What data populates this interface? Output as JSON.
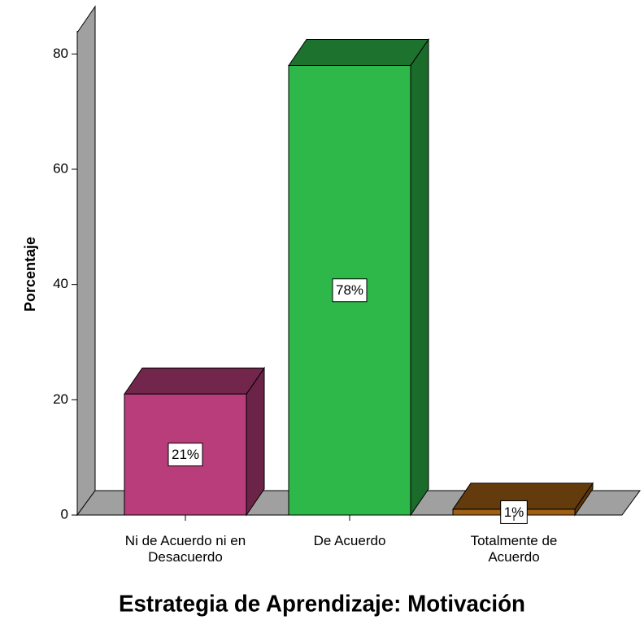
{
  "chart_data": {
    "type": "bar3d",
    "title": "Estrategia de Aprendizaje: Motivación",
    "y_label": "Porcentaje",
    "categories": [
      "Ni de Acuerdo ni en Desacuerdo",
      "De Acuerdo",
      "Totalmente de Acuerdo"
    ],
    "values": [
      21,
      78,
      1
    ],
    "value_labels": [
      "21%",
      "78%",
      "1%"
    ],
    "colors": [
      "#b93d7a",
      "#2fb84a",
      "#a05f14"
    ],
    "ylim": [
      0,
      84
    ],
    "yticks": [
      0,
      20,
      40,
      60,
      80
    ]
  }
}
